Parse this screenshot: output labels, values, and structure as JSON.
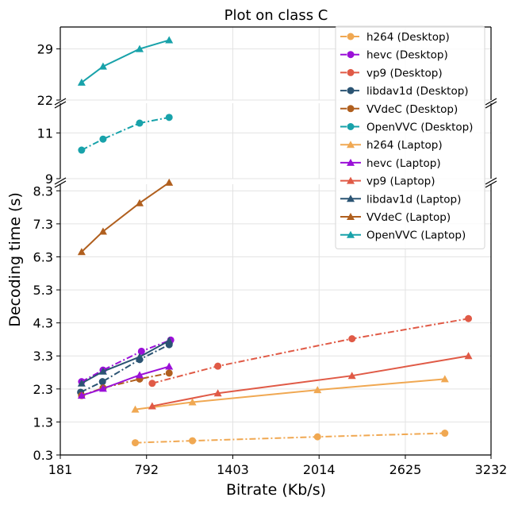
{
  "chart_data": {
    "type": "line",
    "title": "Plot on class C",
    "xlabel": "Bitrate (Kb/s)",
    "ylabel": "Decoding time (s)",
    "xlim": [
      181,
      3232
    ],
    "x_ticks": [
      "181",
      "792",
      "1403",
      "2014",
      "2625",
      "3232"
    ],
    "x_tick_values": [
      181,
      792,
      1403,
      2014,
      2625,
      3232
    ],
    "grid": true,
    "legend_placement": "top-right",
    "panels": [
      {
        "id": "top",
        "ylim": [
          22,
          32
        ],
        "y_ticks": [
          "22",
          "29"
        ],
        "y_tick_values": [
          22,
          29
        ]
      },
      {
        "id": "middle",
        "ylim": [
          9,
          12.3
        ],
        "y_ticks": [
          "9",
          "11"
        ],
        "y_tick_values": [
          9,
          11
        ]
      },
      {
        "id": "bottom",
        "ylim": [
          0.3,
          8.5
        ],
        "y_ticks": [
          "0.3",
          "1.3",
          "2.3",
          "3.3",
          "4.3",
          "5.3",
          "6.3",
          "7.3",
          "8.3"
        ],
        "y_tick_values": [
          0.3,
          1.3,
          2.3,
          3.3,
          4.3,
          5.3,
          6.3,
          7.3,
          8.3
        ]
      }
    ],
    "series": [
      {
        "name": "h264 (Desktop)",
        "color": "#f0a852",
        "marker": "circle",
        "dash": "dashdot",
        "panel": "bottom",
        "x": [
          712,
          1117,
          2003,
          2905
        ],
        "y": [
          0.67,
          0.73,
          0.85,
          0.96
        ]
      },
      {
        "name": "hevc (Desktop)",
        "color": "#9b10d8",
        "marker": "circle",
        "dash": "dashdot",
        "panel": "bottom",
        "x": [
          332,
          484,
          756,
          963
        ],
        "y": [
          2.52,
          2.87,
          3.44,
          3.78
        ]
      },
      {
        "name": "vp9 (Desktop)",
        "color": "#e05a46",
        "marker": "circle",
        "dash": "dashdot",
        "panel": "bottom",
        "x": [
          832,
          1297,
          2247,
          3072
        ],
        "y": [
          2.47,
          2.99,
          3.82,
          4.43
        ]
      },
      {
        "name": "libdav1d (Desktop)",
        "color": "#2b5473",
        "marker": "circle",
        "dash": "dashdot",
        "panel": "bottom",
        "x": [
          325,
          480,
          743,
          952
        ],
        "y": [
          2.2,
          2.52,
          3.19,
          3.64
        ]
      },
      {
        "name": "VVdeC (Desktop)",
        "color": "#b05f1e",
        "marker": "circle",
        "dash": "dashdot",
        "panel": "bottom",
        "x": [
          332,
          484,
          743,
          952
        ],
        "y": [
          2.1,
          2.33,
          2.6,
          2.78
        ]
      },
      {
        "name": "OpenVVC (Desktop)",
        "color": "#18a2aa",
        "marker": "circle",
        "dash": "dashdot",
        "panel": "middle",
        "x": [
          332,
          484,
          743,
          952
        ],
        "y": [
          10.25,
          10.73,
          11.43,
          11.68
        ]
      },
      {
        "name": "h264 (Laptop)",
        "color": "#f0a852",
        "marker": "triangle",
        "dash": "solid",
        "panel": "bottom",
        "x": [
          712,
          1117,
          2003,
          2905
        ],
        "y": [
          1.68,
          1.9,
          2.27,
          2.6
        ]
      },
      {
        "name": "hevc (Laptop)",
        "color": "#9b10d8",
        "marker": "triangle",
        "dash": "solid",
        "panel": "bottom",
        "x": [
          332,
          484,
          743,
          952
        ],
        "y": [
          2.1,
          2.31,
          2.72,
          2.98
        ]
      },
      {
        "name": "vp9 (Laptop)",
        "color": "#e05a46",
        "marker": "triangle",
        "dash": "solid",
        "panel": "bottom",
        "x": [
          832,
          1297,
          2247,
          3072
        ],
        "y": [
          1.78,
          2.17,
          2.7,
          3.3
        ]
      },
      {
        "name": "libdav1d (Laptop)",
        "color": "#2b5473",
        "marker": "triangle",
        "dash": "solid",
        "panel": "bottom",
        "x": [
          332,
          484,
          743,
          952
        ],
        "y": [
          2.47,
          2.83,
          3.27,
          3.76
        ]
      },
      {
        "name": "VVdeC (Laptop)",
        "color": "#b05f1e",
        "marker": "triangle",
        "dash": "solid",
        "panel": "bottom",
        "x": [
          332,
          484,
          743,
          952
        ],
        "y": [
          6.45,
          7.07,
          7.93,
          8.55
        ]
      },
      {
        "name": "OpenVVC (Laptop)",
        "color": "#18a2aa",
        "marker": "triangle",
        "dash": "solid",
        "panel": "top",
        "x": [
          332,
          484,
          743,
          952
        ],
        "y": [
          24.4,
          26.6,
          29.0,
          30.2
        ]
      }
    ]
  }
}
